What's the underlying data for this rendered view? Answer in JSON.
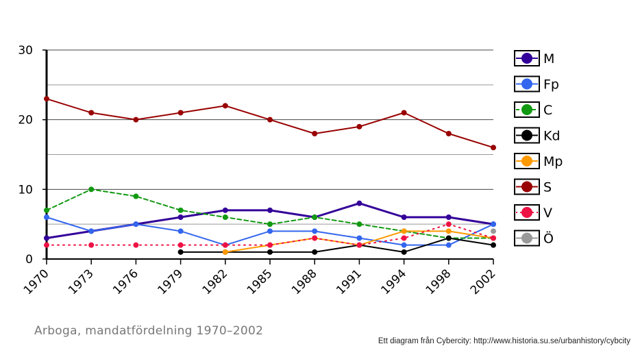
{
  "chart_data": {
    "type": "line",
    "categories": [
      "1970",
      "1973",
      "1976",
      "1979",
      "1982",
      "1985",
      "1988",
      "1991",
      "1994",
      "1998",
      "2002"
    ],
    "ylim": [
      0,
      30
    ],
    "y_ticks": [
      "0",
      "10",
      "20",
      "30"
    ],
    "grid": "horizontal, every 5",
    "legend_position": "right",
    "series": [
      {
        "name": "M",
        "color": "#330099",
        "style": "solid",
        "values": [
          3,
          4,
          5,
          6,
          7,
          7,
          6,
          8,
          6,
          6,
          5
        ]
      },
      {
        "name": "Fp",
        "color": "#3366ee",
        "style": "solid",
        "values": [
          6,
          4,
          5,
          4,
          2,
          4,
          4,
          3,
          2,
          2,
          5
        ]
      },
      {
        "name": "C",
        "color": "#119911",
        "style": "dashed",
        "values": [
          7,
          10,
          9,
          7,
          6,
          5,
          6,
          5,
          4,
          3,
          3
        ]
      },
      {
        "name": "Kd",
        "color": "#000000",
        "style": "solid",
        "values": [
          null,
          null,
          null,
          1,
          1,
          1,
          1,
          2,
          1,
          3,
          2
        ]
      },
      {
        "name": "Mp",
        "color": "#ff9900",
        "style": "solid",
        "values": [
          null,
          null,
          null,
          null,
          1,
          2,
          3,
          2,
          4,
          4,
          3
        ]
      },
      {
        "name": "S",
        "color": "#990000",
        "style": "solid",
        "values": [
          23,
          21,
          20,
          21,
          22,
          20,
          18,
          19,
          21,
          18,
          16
        ]
      },
      {
        "name": "V",
        "color": "#ee1144",
        "style": "dotted",
        "values": [
          2,
          2,
          2,
          2,
          2,
          2,
          3,
          2,
          3,
          5,
          3
        ]
      },
      {
        "name": "Ö",
        "color": "#999999",
        "style": "solid",
        "values": [
          null,
          null,
          null,
          null,
          null,
          null,
          null,
          null,
          null,
          null,
          4
        ]
      }
    ]
  },
  "caption": "Arboga, mandatfördelning 1970–2002",
  "credit": "Ett diagram från Cybercity: http://www.historia.su.se/urbanhistory/cybcity"
}
